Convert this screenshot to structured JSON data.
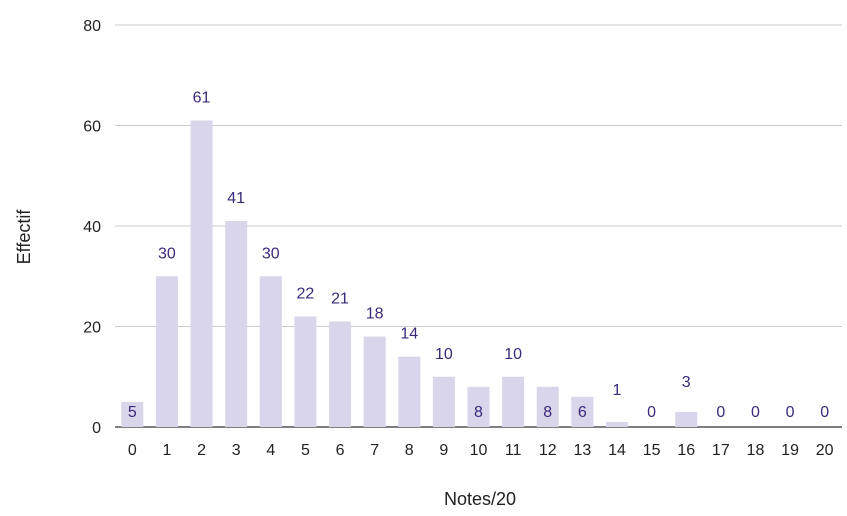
{
  "chart_data": {
    "type": "bar",
    "title": "",
    "xlabel": "Notes/20",
    "ylabel": "Effectif",
    "categories": [
      "0",
      "1",
      "2",
      "3",
      "4",
      "5",
      "6",
      "7",
      "8",
      "9",
      "10",
      "11",
      "12",
      "13",
      "14",
      "15",
      "16",
      "17",
      "18",
      "19",
      "20"
    ],
    "values": [
      5,
      30,
      61,
      41,
      30,
      22,
      21,
      18,
      14,
      10,
      8,
      10,
      8,
      6,
      1,
      0,
      3,
      0,
      0,
      0,
      0
    ],
    "data_labels": [
      "5",
      "30",
      "61",
      "41",
      "30",
      "22",
      "21",
      "18",
      "14",
      "10",
      "8",
      "10",
      "8",
      "6",
      "1",
      "0",
      "3",
      "0",
      "0",
      "0",
      "0"
    ],
    "ylim": [
      0,
      80
    ],
    "yticks": [
      "0",
      "20",
      "40",
      "60",
      "80"
    ],
    "grid": true,
    "legend": "none",
    "colors": {
      "bar": "#d9d5ea",
      "label": "#3b2a7a",
      "grid": "#cccccc",
      "axis_text": "#222222"
    }
  }
}
